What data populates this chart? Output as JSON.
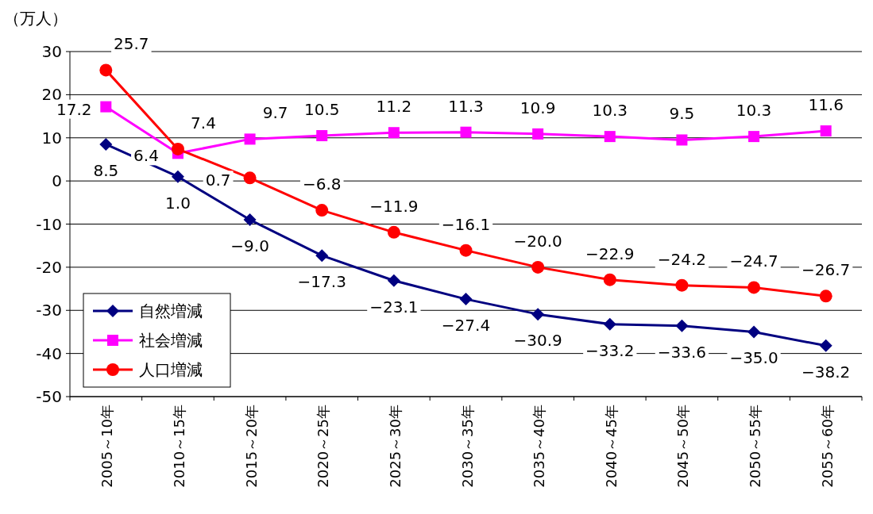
{
  "chart_data": {
    "type": "line",
    "ylabel": "（万人）",
    "categories": [
      "2005～10年",
      "2010～15年",
      "2015～20年",
      "2020～25年",
      "2025～30年",
      "2030～35年",
      "2035～40年",
      "2040～45年",
      "2045～50年",
      "2050～55年",
      "2055～60年"
    ],
    "series": [
      {
        "name": "自然増減",
        "color": "#000080",
        "marker": "diamond",
        "values": [
          8.5,
          1.0,
          -9.0,
          -17.3,
          -23.1,
          -27.4,
          -30.9,
          -33.2,
          -33.6,
          -35.0,
          -38.2
        ],
        "value_labels": [
          "8.5",
          "1.0",
          "−9.0",
          "−17.3",
          "−23.1",
          "−27.4",
          "−30.9",
          "−33.2",
          "−33.6",
          "−35.0",
          "−38.2"
        ]
      },
      {
        "name": "社会増減",
        "color": "#ff00ff",
        "marker": "square",
        "values": [
          17.2,
          6.4,
          9.7,
          10.5,
          11.2,
          11.3,
          10.9,
          10.3,
          9.5,
          10.3,
          11.6
        ],
        "value_labels": [
          "17.2",
          "6.4",
          "9.7",
          "10.5",
          "11.2",
          "11.3",
          "10.9",
          "10.3",
          "9.5",
          "10.3",
          "11.6"
        ]
      },
      {
        "name": "人口増減",
        "color": "#ff0000",
        "marker": "circle",
        "values": [
          25.7,
          7.4,
          0.7,
          -6.8,
          -11.9,
          -16.1,
          -20.0,
          -22.9,
          -24.2,
          -24.7,
          -26.7
        ],
        "value_labels": [
          "25.7",
          "7.4",
          "0.7",
          "−6.8",
          "−11.9",
          "−16.1",
          "−20.0",
          "−22.9",
          "−24.2",
          "−24.7",
          "−26.7"
        ]
      }
    ],
    "ylim": [
      -50,
      30
    ],
    "yticks": [
      30,
      20,
      10,
      0,
      -10,
      -20,
      -30,
      -40,
      -50
    ],
    "grid": "y",
    "legend": "bottom left"
  }
}
